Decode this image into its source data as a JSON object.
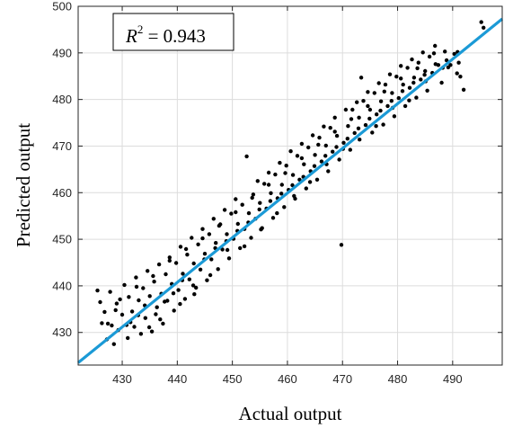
{
  "chart_data": {
    "type": "scatter",
    "title": "",
    "xlabel": "Actual output",
    "ylabel": "Predicted output",
    "xlim": [
      422,
      499
    ],
    "ylim": [
      423,
      500
    ],
    "x_ticks": [
      430,
      440,
      450,
      460,
      470,
      480,
      490
    ],
    "y_ticks": [
      430,
      440,
      450,
      460,
      470,
      480,
      490,
      500
    ],
    "grid": true,
    "annotation": {
      "symbol": "R",
      "superscript": "2",
      "value_text": " = 0.943"
    },
    "marker_color": "#000000",
    "fit_line": {
      "color": "#1b9ad6",
      "x": [
        422,
        499
      ],
      "y": [
        423.5,
        497.3
      ]
    },
    "points": [
      [
        425.5,
        439
      ],
      [
        426,
        436.5
      ],
      [
        426.3,
        432
      ],
      [
        427.2,
        428.5
      ],
      [
        426.8,
        434.4
      ],
      [
        427.8,
        438.7
      ],
      [
        428.5,
        427.5
      ],
      [
        429,
        436.2
      ],
      [
        429.3,
        430.5
      ],
      [
        430,
        433.8
      ],
      [
        430.4,
        440.2
      ],
      [
        431,
        428.8
      ],
      [
        431.2,
        437.6
      ],
      [
        431.8,
        434.5
      ],
      [
        432.2,
        431.2
      ],
      [
        432.5,
        441.8
      ],
      [
        433,
        436.9
      ],
      [
        433.4,
        429.7
      ],
      [
        433.8,
        439.5
      ],
      [
        434.2,
        433.1
      ],
      [
        434.6,
        443.2
      ],
      [
        435,
        437.8
      ],
      [
        435.4,
        430.2
      ],
      [
        435.8,
        440.9
      ],
      [
        436.3,
        435.4
      ],
      [
        436.7,
        444.6
      ],
      [
        437.1,
        438.3
      ],
      [
        437.4,
        431.9
      ],
      [
        437.9,
        442.5
      ],
      [
        438.2,
        436.8
      ],
      [
        438.6,
        446.1
      ],
      [
        439,
        440.4
      ],
      [
        439.4,
        434.7
      ],
      [
        439.8,
        444.9
      ],
      [
        440.2,
        439.1
      ],
      [
        440.6,
        448.4
      ],
      [
        441,
        442.6
      ],
      [
        441.4,
        437.2
      ],
      [
        441.8,
        446.7
      ],
      [
        442.2,
        441.4
      ],
      [
        442.6,
        450.3
      ],
      [
        443,
        444.8
      ],
      [
        443.4,
        439.6
      ],
      [
        443.8,
        448.9
      ],
      [
        444.2,
        443.5
      ],
      [
        444.6,
        452.2
      ],
      [
        445,
        446.9
      ],
      [
        445.4,
        441.2
      ],
      [
        445.8,
        451.1
      ],
      [
        446.2,
        445.7
      ],
      [
        446.6,
        454.4
      ],
      [
        447,
        449.2
      ],
      [
        447.4,
        443.6
      ],
      [
        447.8,
        453.2
      ],
      [
        448.2,
        447.8
      ],
      [
        448.6,
        456.3
      ],
      [
        449,
        451.1
      ],
      [
        449.4,
        445.9
      ],
      [
        449.8,
        455.5
      ],
      [
        450.2,
        450.1
      ],
      [
        450.6,
        458.6
      ],
      [
        451,
        453.3
      ],
      [
        451.4,
        448.1
      ],
      [
        451.8,
        457.4
      ],
      [
        452.2,
        452.2
      ],
      [
        452.6,
        467.8
      ],
      [
        453,
        455.6
      ],
      [
        453.4,
        450.3
      ],
      [
        453.8,
        459.6
      ],
      [
        454.2,
        454.4
      ],
      [
        454.6,
        462.5
      ],
      [
        455,
        457.8
      ],
      [
        455.4,
        452.4
      ],
      [
        455.8,
        461.9
      ],
      [
        456.2,
        456.6
      ],
      [
        456.6,
        464.3
      ],
      [
        457,
        459.9
      ],
      [
        457.4,
        454.6
      ],
      [
        457.8,
        463.9
      ],
      [
        458.2,
        458.8
      ],
      [
        458.6,
        466.4
      ],
      [
        459,
        461.7
      ],
      [
        459.4,
        456.9
      ],
      [
        459.8,
        465.8
      ],
      [
        460.2,
        460.6
      ],
      [
        460.6,
        468.9
      ],
      [
        461,
        463.8
      ],
      [
        461.4,
        458.7
      ],
      [
        461.8,
        467.9
      ],
      [
        462.2,
        462.8
      ],
      [
        462.6,
        470.5
      ],
      [
        463,
        466.1
      ],
      [
        463.4,
        460.9
      ],
      [
        463.8,
        469.7
      ],
      [
        464.2,
        464.6
      ],
      [
        464.6,
        472.3
      ],
      [
        465,
        468.1
      ],
      [
        465.4,
        462.8
      ],
      [
        465.8,
        471.8
      ],
      [
        466.2,
        466.7
      ],
      [
        466.6,
        474.2
      ],
      [
        467,
        470.1
      ],
      [
        467.4,
        464.6
      ],
      [
        467.8,
        473.9
      ],
      [
        468.2,
        468.8
      ],
      [
        468.6,
        476.1
      ],
      [
        469,
        472.2
      ],
      [
        469.4,
        467.1
      ],
      [
        469.8,
        448.8
      ],
      [
        470.2,
        470.7
      ],
      [
        470.6,
        477.8
      ],
      [
        471,
        474.3
      ],
      [
        471.4,
        469.2
      ],
      [
        471.8,
        477.8
      ],
      [
        472.2,
        472.8
      ],
      [
        472.6,
        479.4
      ],
      [
        473,
        476.1
      ],
      [
        473.4,
        484.7
      ],
      [
        473.8,
        479.7
      ],
      [
        474.2,
        474.5
      ],
      [
        474.6,
        481.6
      ],
      [
        475,
        477.8
      ],
      [
        475.4,
        472.9
      ],
      [
        475.8,
        481.4
      ],
      [
        476.2,
        476.8
      ],
      [
        476.6,
        483.5
      ],
      [
        477,
        479.6
      ],
      [
        477.4,
        474.6
      ],
      [
        477.8,
        483.2
      ],
      [
        478.2,
        478.6
      ],
      [
        478.6,
        485.4
      ],
      [
        479,
        481.4
      ],
      [
        479.4,
        476.4
      ],
      [
        479.8,
        484.9
      ],
      [
        480.2,
        480.3
      ],
      [
        480.6,
        487.2
      ],
      [
        481,
        483.2
      ],
      [
        481.4,
        478.6
      ],
      [
        481.8,
        486.8
      ],
      [
        482.2,
        482.5
      ],
      [
        482.6,
        488.6
      ],
      [
        483,
        484.7
      ],
      [
        483.4,
        480.4
      ],
      [
        483.8,
        487.9
      ],
      [
        484.2,
        484.3
      ],
      [
        484.6,
        490.1
      ],
      [
        485,
        486.1
      ],
      [
        485.4,
        481.9
      ],
      [
        485.8,
        489.2
      ],
      [
        486.3,
        485.7
      ],
      [
        486.8,
        491.5
      ],
      [
        487.4,
        487.4
      ],
      [
        488,
        483.6
      ],
      [
        488.6,
        490.3
      ],
      [
        489.2,
        486.9
      ],
      [
        489.6,
        487.4
      ],
      [
        490.3,
        489.8
      ],
      [
        490.8,
        485.6
      ],
      [
        491.4,
        484.9
      ],
      [
        492,
        482.1
      ],
      [
        495.2,
        496.6
      ],
      [
        495.6,
        495.4
      ],
      [
        428.1,
        431.5
      ],
      [
        431.5,
        432.2
      ],
      [
        434.1,
        435.8
      ],
      [
        436.9,
        432.8
      ],
      [
        440.5,
        436.1
      ],
      [
        443.1,
        438.2
      ],
      [
        446,
        442.3
      ],
      [
        449.1,
        447.7
      ],
      [
        452.2,
        448.5
      ],
      [
        455.2,
        452.1
      ],
      [
        458.1,
        455.6
      ],
      [
        461.2,
        459.3
      ],
      [
        464.1,
        462.3
      ],
      [
        467.1,
        466.1
      ],
      [
        470.1,
        469.4
      ],
      [
        473.1,
        471.4
      ],
      [
        476.1,
        474.3
      ],
      [
        479.1,
        478.2
      ],
      [
        482.1,
        479.8
      ],
      [
        485.1,
        483.9
      ],
      [
        488.2,
        486.8
      ],
      [
        491.1,
        487.9
      ],
      [
        429.6,
        437.1
      ],
      [
        432.6,
        439.8
      ],
      [
        435.6,
        442.1
      ],
      [
        438.6,
        445.4
      ],
      [
        441.6,
        447.9
      ],
      [
        444.6,
        450.2
      ],
      [
        447.6,
        452.9
      ],
      [
        450.6,
        455.8
      ],
      [
        453.6,
        458.9
      ],
      [
        456.6,
        461.7
      ],
      [
        459.6,
        464.2
      ],
      [
        462.6,
        467.4
      ],
      [
        465.6,
        470.3
      ],
      [
        468.6,
        473.1
      ],
      [
        471.6,
        475.8
      ],
      [
        474.6,
        478.6
      ],
      [
        477.6,
        481.7
      ],
      [
        480.6,
        484.5
      ],
      [
        483.6,
        486.7
      ],
      [
        486.6,
        489.9
      ],
      [
        427.4,
        431.9
      ],
      [
        428.8,
        434.8
      ],
      [
        430.8,
        431.6
      ],
      [
        432.9,
        433.7
      ],
      [
        434.9,
        431.1
      ],
      [
        436.1,
        433.9
      ],
      [
        437.7,
        436.6
      ],
      [
        439.3,
        438.4
      ],
      [
        440.9,
        441.2
      ],
      [
        442.9,
        440.1
      ],
      [
        444.9,
        445.7
      ],
      [
        446.9,
        448.1
      ],
      [
        448.9,
        449.6
      ],
      [
        450.9,
        451.8
      ],
      [
        452.9,
        453.6
      ],
      [
        454.9,
        456.4
      ],
      [
        456.9,
        458.2
      ],
      [
        458.9,
        459.8
      ],
      [
        460.9,
        461.6
      ],
      [
        462.9,
        463.4
      ],
      [
        464.9,
        465.7
      ],
      [
        466.9,
        467.9
      ],
      [
        468.9,
        469.8
      ],
      [
        470.9,
        471.6
      ],
      [
        472.9,
        473.8
      ],
      [
        474.9,
        475.9
      ],
      [
        476.9,
        477.6
      ],
      [
        478.9,
        479.7
      ],
      [
        480.9,
        481.8
      ],
      [
        482.9,
        483.6
      ],
      [
        484.9,
        485.3
      ],
      [
        486.9,
        487.6
      ],
      [
        488.9,
        488.4
      ],
      [
        490.9,
        490.2
      ]
    ]
  }
}
